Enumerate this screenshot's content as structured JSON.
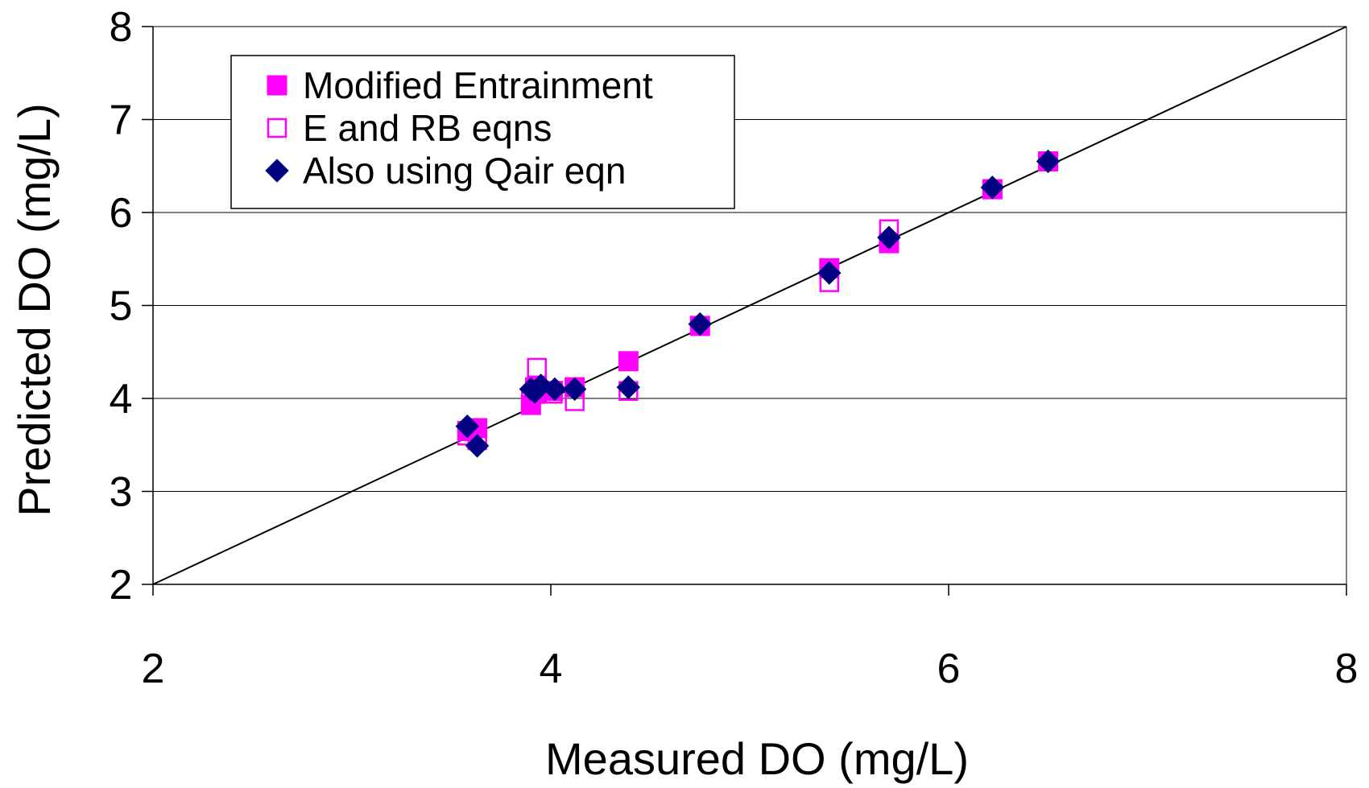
{
  "chart_data": {
    "type": "scatter",
    "xlabel": "Measured DO (mg/L)",
    "ylabel": "Predicted DO (mg/L)",
    "xlim": [
      2,
      8
    ],
    "ylim": [
      2,
      8
    ],
    "x_ticks": [
      "2",
      "4",
      "6",
      "8"
    ],
    "y_ticks": [
      "2",
      "3",
      "4",
      "5",
      "6",
      "7",
      "8"
    ],
    "grid": "horizontal",
    "legend_position": "top-left",
    "reference_line": {
      "from": [
        2,
        2
      ],
      "to": [
        8,
        8
      ]
    },
    "series": [
      {
        "name": "Modified Entrainment",
        "marker": "filled-square",
        "color": "#ff00ff",
        "points": [
          [
            3.58,
            3.65
          ],
          [
            3.63,
            3.68
          ],
          [
            3.9,
            3.93
          ],
          [
            3.92,
            4.05
          ],
          [
            3.93,
            4.12
          ],
          [
            4.01,
            4.08
          ],
          [
            4.12,
            4.12
          ],
          [
            4.39,
            4.4
          ],
          [
            4.75,
            4.78
          ],
          [
            5.4,
            5.4
          ],
          [
            5.7,
            5.67
          ],
          [
            6.22,
            6.25
          ],
          [
            6.5,
            6.55
          ]
        ]
      },
      {
        "name": "E and RB eqns",
        "marker": "open-square",
        "color": "#ff00ff",
        "points": [
          [
            3.58,
            3.6
          ],
          [
            3.63,
            3.55
          ],
          [
            3.9,
            4.0
          ],
          [
            3.92,
            4.12
          ],
          [
            3.93,
            4.33
          ],
          [
            4.01,
            4.05
          ],
          [
            4.12,
            3.97
          ],
          [
            4.39,
            4.08
          ],
          [
            4.75,
            4.78
          ],
          [
            5.4,
            5.25
          ],
          [
            5.7,
            5.82
          ],
          [
            6.22,
            6.25
          ],
          [
            6.5,
            6.55
          ]
        ]
      },
      {
        "name": "Also using Qair eqn",
        "marker": "diamond",
        "color": "#000080",
        "points": [
          [
            3.58,
            3.7
          ],
          [
            3.63,
            3.49
          ],
          [
            3.9,
            4.1
          ],
          [
            3.92,
            4.07
          ],
          [
            3.95,
            4.14
          ],
          [
            4.02,
            4.1
          ],
          [
            4.12,
            4.1
          ],
          [
            4.39,
            4.12
          ],
          [
            4.75,
            4.8
          ],
          [
            5.4,
            5.35
          ],
          [
            5.7,
            5.73
          ],
          [
            6.22,
            6.27
          ],
          [
            6.5,
            6.55
          ]
        ]
      }
    ]
  }
}
